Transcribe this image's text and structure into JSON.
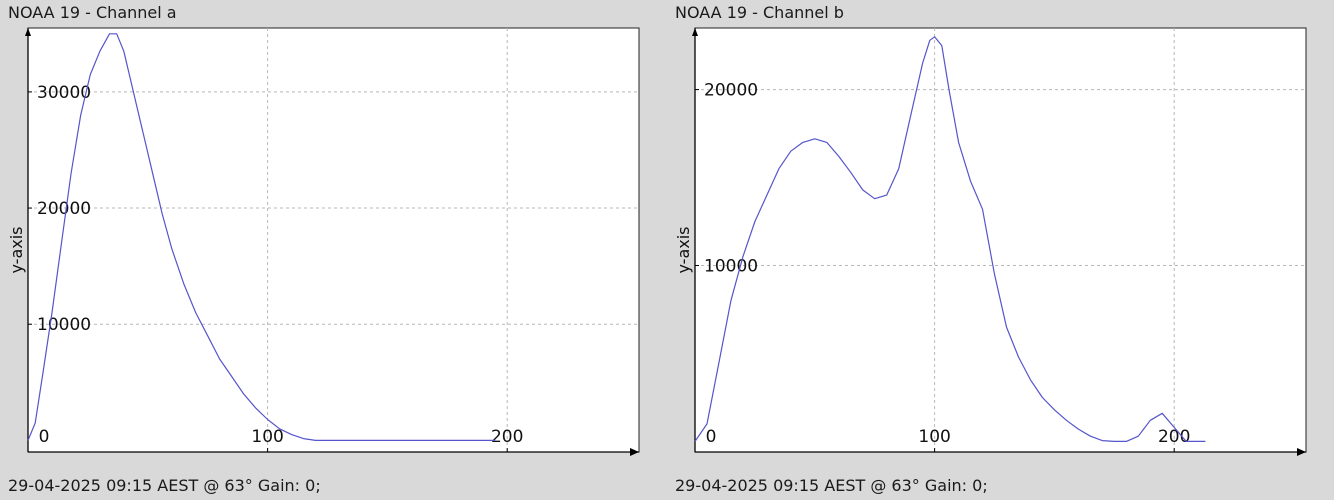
{
  "colors": {
    "background": "#d9d9d9",
    "plot_area": "#ffffff",
    "line": "#5555cc",
    "grid": "#b8b8b8",
    "axis": "#000000"
  },
  "chart_data": [
    {
      "type": "line",
      "title": "NOAA 19 - Channel a",
      "footer": "29-04-2025 09:15 AEST @ 63° Gain: 0;",
      "xlabel": "",
      "ylabel": "y-axis",
      "xlim": [
        0,
        255
      ],
      "ylim": [
        -1000,
        35500
      ],
      "x_ticks": [
        "0",
        "100",
        "200"
      ],
      "y_ticks": [
        "10000",
        "20000",
        "30000"
      ],
      "grid": true,
      "series": [
        {
          "x": [
            0,
            3,
            6,
            10,
            14,
            18,
            22,
            26,
            30,
            34,
            37,
            40,
            44,
            48,
            52,
            56,
            60,
            65,
            70,
            75,
            80,
            85,
            90,
            95,
            100,
            105,
            110,
            115,
            120,
            130,
            140,
            150,
            160,
            170,
            180,
            185,
            190,
            195
          ],
          "y": [
            0,
            1500,
            5500,
            11000,
            17000,
            23000,
            28000,
            31500,
            33500,
            35000,
            35000,
            33500,
            30000,
            26500,
            23000,
            19500,
            16500,
            13500,
            11000,
            9000,
            7000,
            5500,
            4000,
            2800,
            1800,
            1000,
            500,
            150,
            0,
            0,
            0,
            0,
            0,
            0,
            0,
            0,
            0,
            0
          ]
        }
      ]
    },
    {
      "type": "line",
      "title": "NOAA 19 - Channel b",
      "footer": "29-04-2025 09:15 AEST @ 63° Gain: 0;",
      "xlabel": "",
      "ylabel": "y-axis",
      "xlim": [
        0,
        255
      ],
      "ylim": [
        -600,
        23500
      ],
      "x_ticks": [
        "0",
        "100",
        "200"
      ],
      "y_ticks": [
        "10000",
        "20000"
      ],
      "grid": true,
      "series": [
        {
          "x": [
            0,
            5,
            10,
            15,
            20,
            25,
            30,
            35,
            40,
            45,
            50,
            55,
            60,
            65,
            70,
            75,
            80,
            85,
            90,
            95,
            98,
            100,
            103,
            106,
            110,
            115,
            120,
            125,
            130,
            135,
            140,
            145,
            150,
            155,
            160,
            165,
            170,
            175,
            180,
            185,
            190,
            195,
            200,
            205,
            210,
            213
          ],
          "y": [
            0,
            1000,
            4500,
            8000,
            10500,
            12500,
            14000,
            15500,
            16500,
            17000,
            17200,
            17000,
            16200,
            15300,
            14300,
            13800,
            14000,
            15500,
            18500,
            21500,
            22800,
            23000,
            22500,
            20000,
            17000,
            14800,
            13200,
            9500,
            6500,
            4800,
            3500,
            2500,
            1800,
            1200,
            700,
            300,
            50,
            0,
            0,
            300,
            1200,
            1600,
            800,
            0,
            0,
            0
          ]
        }
      ]
    }
  ]
}
